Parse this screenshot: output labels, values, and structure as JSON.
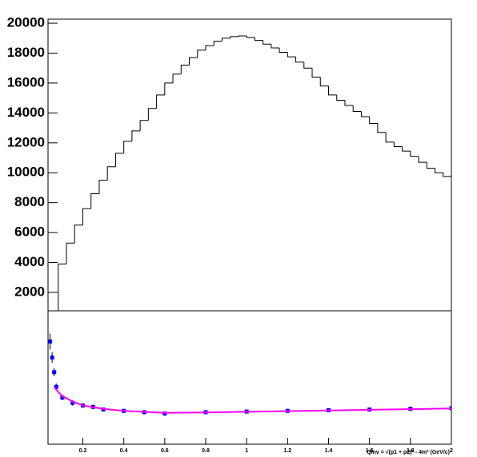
{
  "chart_data": [
    {
      "type": "histogram",
      "color": "#000000",
      "bins": [
        0.04,
        0.08,
        0.12,
        0.16,
        0.2,
        0.24,
        0.28,
        0.32,
        0.36,
        0.4,
        0.44,
        0.48,
        0.52,
        0.56,
        0.6,
        0.64,
        0.68,
        0.72,
        0.76,
        0.8,
        0.84,
        0.88,
        0.92,
        0.96,
        1.0,
        1.04,
        1.08,
        1.12,
        1.16,
        1.2,
        1.24,
        1.28,
        1.32,
        1.36,
        1.4,
        1.44,
        1.48,
        1.52,
        1.56,
        1.6,
        1.64,
        1.68,
        1.72,
        1.76,
        1.8,
        1.84,
        1.88,
        1.92,
        1.96,
        2.0
      ],
      "values": [
        700,
        3900,
        5300,
        6500,
        7600,
        8600,
        9500,
        10400,
        11300,
        12100,
        12800,
        13500,
        14300,
        15200,
        16000,
        16600,
        17200,
        17700,
        18200,
        18500,
        18800,
        19000,
        19100,
        19150,
        19050,
        18850,
        18600,
        18350,
        18050,
        17750,
        17400,
        17000,
        16400,
        15800,
        15200,
        14850,
        14500,
        14100,
        13750,
        13300,
        12700,
        12050,
        11750,
        11450,
        11100,
        10700,
        10300,
        10000,
        9750
      ],
      "xlim": [
        0.03,
        2
      ],
      "ylim": [
        770,
        20270
      ],
      "yticks": [
        2000,
        4000,
        6000,
        8000,
        10000,
        12000,
        14000,
        16000,
        18000,
        20000
      ]
    },
    {
      "type": "scatter",
      "x": [
        0.04,
        0.05,
        0.06,
        0.07,
        0.1,
        0.15,
        0.2,
        0.25,
        0.3,
        0.4,
        0.5,
        0.6,
        0.8,
        1.0,
        1.2,
        1.4,
        1.6,
        1.8,
        2.0
      ],
      "series": [
        {
          "color": "#0000ff",
          "values": [
            0.77,
            0.65,
            0.54,
            0.43,
            0.35,
            0.31,
            0.29,
            0.28,
            0.26,
            0.25,
            0.24,
            0.23,
            0.24,
            0.245,
            0.25,
            0.255,
            0.26,
            0.265,
            0.27
          ],
          "errors": [
            0.06,
            0.04,
            0.03,
            0.025,
            0.02,
            0.02,
            0.015,
            0.015,
            0.015,
            0.015,
            0.015,
            0.015,
            0.015,
            0.015,
            0.015,
            0.015,
            0.015,
            0.015,
            0.015
          ]
        },
        {
          "color": "#ff00ff",
          "x": [
            0.06,
            0.08,
            0.1,
            0.15,
            0.2,
            0.3,
            0.4,
            0.6,
            0.8,
            1.0,
            1.2,
            1.4,
            1.6,
            1.8,
            2.0
          ],
          "values": [
            0.43,
            0.39,
            0.36,
            0.32,
            0.29,
            0.265,
            0.25,
            0.235,
            0.238,
            0.243,
            0.248,
            0.253,
            0.258,
            0.263,
            0.268
          ]
        }
      ],
      "xlim": [
        0.03,
        2
      ],
      "ylim": [
        0,
        1
      ],
      "xticks": [
        0.2,
        0.4,
        0.6,
        0.8,
        1,
        1.2,
        1.4,
        1.6,
        1.8,
        2
      ],
      "xlabel": "Qinv = √(p1 + p2)² - 4m² (GeV/c)"
    }
  ]
}
